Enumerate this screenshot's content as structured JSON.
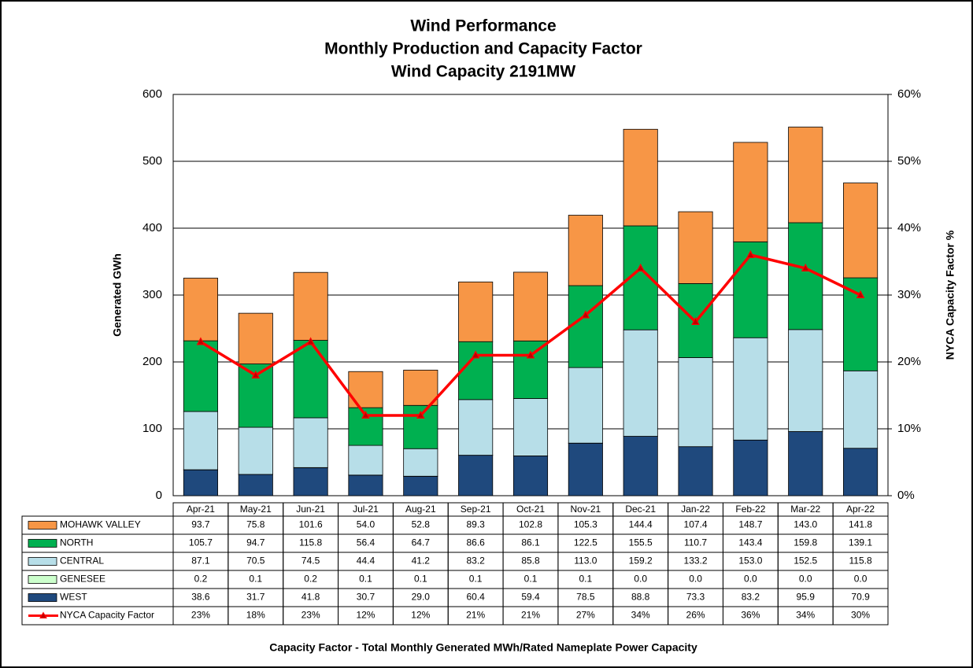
{
  "chart_data": {
    "type": "bar",
    "title": "Wind Performance",
    "subtitle": [
      "Monthly Production and Capacity Factor",
      "Wind Capacity 2191MW"
    ],
    "y_label": "Generated GWh",
    "y2_label": "NYCA  Capacity  Factor %",
    "footnote": "Capacity Factor  - Total Monthly Generated MWh/Rated Nameplate Power Capacity",
    "stacked": true,
    "grid": true,
    "categories": [
      "Apr-21",
      "May-21",
      "Jun-21",
      "Jul-21",
      "Aug-21",
      "Sep-21",
      "Oct-21",
      "Nov-21",
      "Dec-21",
      "Jan-22",
      "Feb-22",
      "Mar-22",
      "Apr-22"
    ],
    "ylim": [
      0,
      600
    ],
    "yticks": [
      0,
      100,
      200,
      300,
      400,
      500,
      600
    ],
    "y2lim": [
      0,
      60
    ],
    "y2ticks": [
      {
        "value": 0,
        "label": "0%"
      },
      {
        "value": 10,
        "label": "10%"
      },
      {
        "value": 20,
        "label": "20%"
      },
      {
        "value": 30,
        "label": "30%"
      },
      {
        "value": 40,
        "label": "40%"
      },
      {
        "value": 50,
        "label": "50%"
      },
      {
        "value": 60,
        "label": "60%"
      }
    ],
    "series": [
      {
        "name": "MOHAWK VALLEY",
        "color": "#f79646",
        "values": [
          93.7,
          75.8,
          101.6,
          54.0,
          52.8,
          89.3,
          102.8,
          105.3,
          144.4,
          107.4,
          148.7,
          143.0,
          141.8
        ],
        "value_labels": [
          "93.7",
          "75.8",
          "101.6",
          "54.0",
          "52.8",
          "89.3",
          "102.8",
          "105.3",
          "144.4",
          "107.4",
          "148.7",
          "143.0",
          "141.8"
        ]
      },
      {
        "name": "NORTH",
        "color": "#00b050",
        "values": [
          105.7,
          94.7,
          115.8,
          56.4,
          64.7,
          86.6,
          86.1,
          122.5,
          155.5,
          110.7,
          143.4,
          159.8,
          139.1
        ],
        "value_labels": [
          "105.7",
          "94.7",
          "115.8",
          "56.4",
          "64.7",
          "86.6",
          "86.1",
          "122.5",
          "155.5",
          "110.7",
          "143.4",
          "159.8",
          "139.1"
        ]
      },
      {
        "name": "CENTRAL",
        "color": "#b7dee8",
        "values": [
          87.1,
          70.5,
          74.5,
          44.4,
          41.2,
          83.2,
          85.8,
          113.0,
          159.2,
          133.2,
          153.0,
          152.5,
          115.8
        ],
        "value_labels": [
          "87.1",
          "70.5",
          "74.5",
          "44.4",
          "41.2",
          "83.2",
          "85.8",
          "113.0",
          "159.2",
          "133.2",
          "153.0",
          "152.5",
          "115.8"
        ]
      },
      {
        "name": "GENESEE",
        "color": "#ccffcc",
        "values": [
          0.2,
          0.1,
          0.2,
          0.1,
          0.1,
          0.1,
          0.1,
          0.1,
          0.0,
          0.0,
          0.0,
          0.0,
          0.0
        ],
        "value_labels": [
          "0.2",
          "0.1",
          "0.2",
          "0.1",
          "0.1",
          "0.1",
          "0.1",
          "0.1",
          "0.0",
          "0.0",
          "0.0",
          "0.0",
          "0.0"
        ]
      },
      {
        "name": "WEST",
        "color": "#1f497d",
        "values": [
          38.6,
          31.7,
          41.8,
          30.7,
          29.0,
          60.4,
          59.4,
          78.5,
          88.8,
          73.3,
          83.2,
          95.9,
          70.9
        ],
        "value_labels": [
          "38.6",
          "31.7",
          "41.8",
          "30.7",
          "29.0",
          "60.4",
          "59.4",
          "78.5",
          "88.8",
          "73.3",
          "83.2",
          "95.9",
          "70.9"
        ]
      },
      {
        "name": "NYCA Capacity Factor",
        "color": "#ff0000",
        "type": "line",
        "axis": "y2",
        "values": [
          23,
          18,
          23,
          12,
          12,
          21,
          21,
          27,
          34,
          26,
          36,
          34,
          30
        ],
        "value_labels": [
          "23%",
          "18%",
          "23%",
          "12%",
          "12%",
          "21%",
          "21%",
          "27%",
          "34%",
          "26%",
          "36%",
          "34%",
          "30%"
        ]
      }
    ]
  }
}
